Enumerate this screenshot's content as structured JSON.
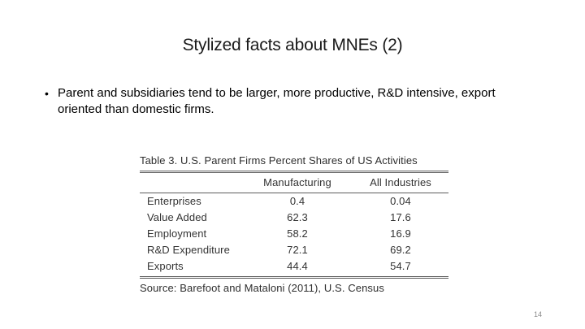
{
  "slide": {
    "title": "Stylized facts about MNEs (2)",
    "bullet": "Parent and subsidiaries tend to be larger, more productive, R&D intensive, export oriented than domestic firms.",
    "bullet_glyph": "•",
    "page_number": "14"
  },
  "table": {
    "caption": "Table 3. U.S. Parent Firms Percent Shares of US Activities",
    "columns": [
      "",
      "Manufacturing",
      "All Industries"
    ],
    "rows": [
      [
        "Enterprises",
        "0.4",
        "0.04"
      ],
      [
        "Value Added",
        "62.3",
        "17.6"
      ],
      [
        "Employment",
        "58.2",
        "16.9"
      ],
      [
        "R&D Expenditure",
        "72.1",
        "69.2"
      ],
      [
        "Exports",
        "44.4",
        "54.7"
      ]
    ],
    "source": "Source: Barefoot and Mataloni (2011), U.S. Census"
  },
  "chart_data": {
    "type": "table",
    "title": "Table 3. U.S. Parent Firms Percent Shares of US Activities",
    "columns": [
      "",
      "Manufacturing",
      "All Industries"
    ],
    "rows": [
      [
        "Enterprises",
        0.4,
        0.04
      ],
      [
        "Value Added",
        62.3,
        17.6
      ],
      [
        "Employment",
        58.2,
        16.9
      ],
      [
        "R&D Expenditure",
        72.1,
        69.2
      ],
      [
        "Exports",
        44.4,
        54.7
      ]
    ],
    "source": "Source: Barefoot and Mataloni (2011), U.S. Census"
  }
}
